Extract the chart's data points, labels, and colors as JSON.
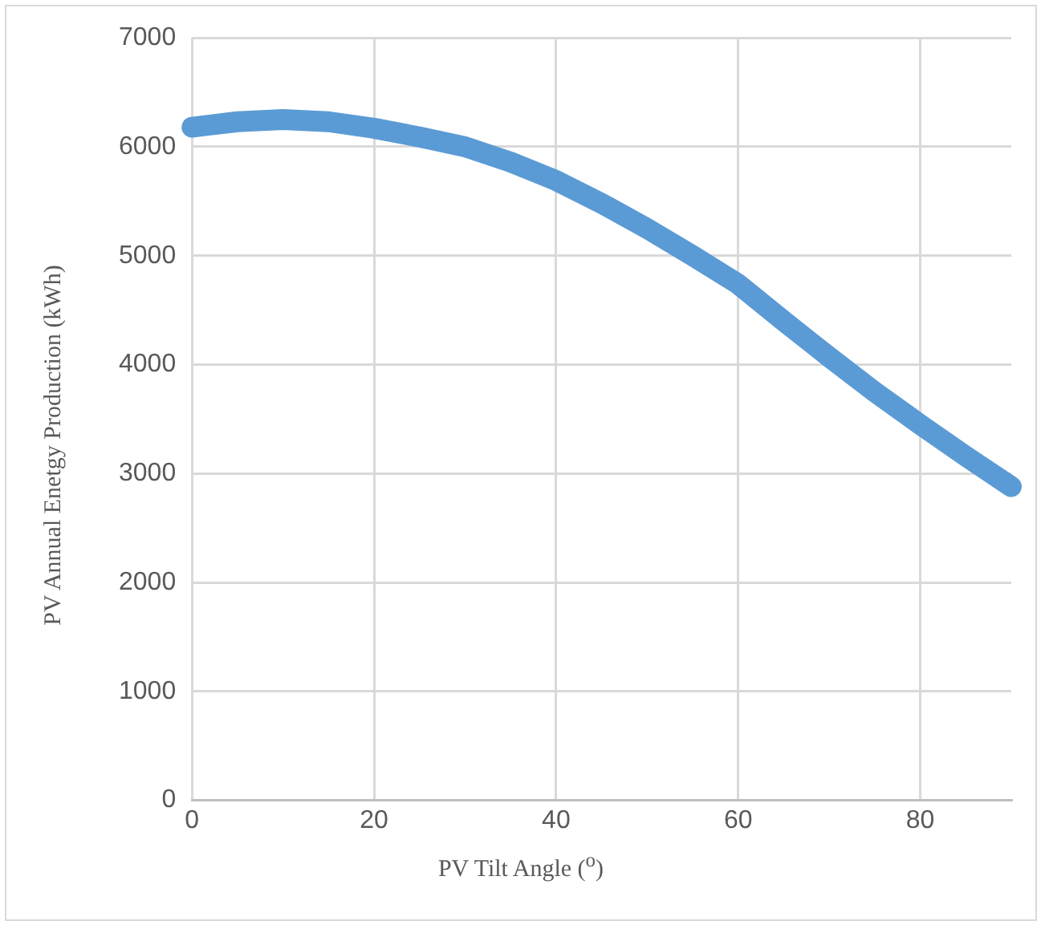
{
  "chart_data": {
    "type": "line",
    "xlabel": "PV Tilt Angle ($^{o}$)",
    "ylabel": "PV Annual Enetgy Production (kWh)",
    "x": [
      0,
      5,
      10,
      15,
      20,
      25,
      30,
      35,
      40,
      45,
      50,
      55,
      60,
      65,
      70,
      75,
      80,
      85,
      90
    ],
    "series": [
      {
        "color": "#5b9bd5",
        "values": [
          6180,
          6230,
          6250,
          6230,
          6170,
          6090,
          6000,
          5860,
          5690,
          5480,
          5250,
          5000,
          4740,
          4400,
          4070,
          3750,
          3450,
          3160,
          2880
        ]
      }
    ],
    "xlim": [
      0,
      90
    ],
    "xticks": [
      0,
      20,
      40,
      60,
      80
    ],
    "ylim": [
      0,
      7000
    ],
    "yticks": [
      0,
      1000,
      2000,
      3000,
      4000,
      5000,
      6000,
      7000
    ],
    "grid": true,
    "legend": false,
    "marker": "none",
    "line_style": "solid"
  }
}
